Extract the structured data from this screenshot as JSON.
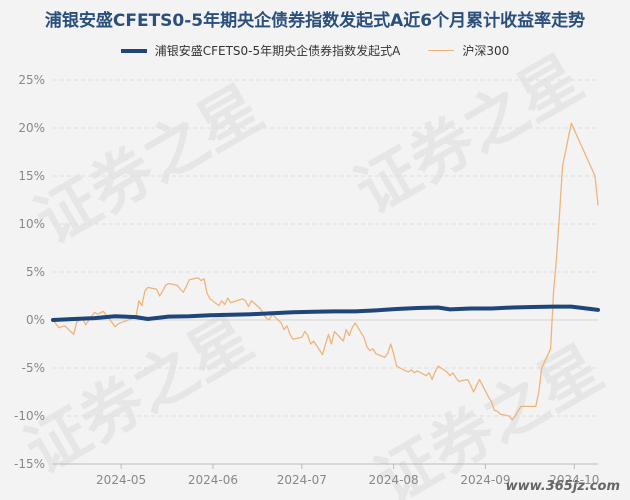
{
  "chart_data": {
    "type": "line",
    "title": "浦银安盛CFETS0-5年期央企债券指数发起式A近6个月累计收益率走势",
    "ylim": [
      -15,
      25
    ],
    "y_ticks": [
      "25%",
      "20%",
      "15%",
      "10%",
      "5%",
      "0%",
      "-5%",
      "-10%",
      "-15%"
    ],
    "y_tick_values": [
      25,
      20,
      15,
      10,
      5,
      0,
      -5,
      -10,
      -15
    ],
    "x_tick_labels": [
      "2024-05",
      "2024-06",
      "2024-07",
      "2024-08",
      "2024-09",
      "2024-10"
    ],
    "x_range": [
      "2024-04-08",
      "2024-10-09"
    ],
    "x_tick_dates": [
      "2024-05-01",
      "2024-06-01",
      "2024-07-01",
      "2024-08-01",
      "2024-09-01",
      "2024-10-01"
    ],
    "grid": true,
    "legend_position": "top",
    "series": [
      {
        "name": "浦银安盛CFETS0-5年期央企债券指数发起式A",
        "color": "#1f467a",
        "points": [
          [
            "2024-04-08",
            0.0
          ],
          [
            "2024-04-15",
            0.1
          ],
          [
            "2024-04-22",
            0.2
          ],
          [
            "2024-04-29",
            0.4
          ],
          [
            "2024-05-06",
            0.3
          ],
          [
            "2024-05-10",
            0.1
          ],
          [
            "2024-05-17",
            0.35
          ],
          [
            "2024-05-24",
            0.4
          ],
          [
            "2024-05-31",
            0.5
          ],
          [
            "2024-06-07",
            0.55
          ],
          [
            "2024-06-14",
            0.6
          ],
          [
            "2024-06-21",
            0.7
          ],
          [
            "2024-06-28",
            0.8
          ],
          [
            "2024-07-05",
            0.85
          ],
          [
            "2024-07-12",
            0.9
          ],
          [
            "2024-07-19",
            0.9
          ],
          [
            "2024-07-26",
            1.0
          ],
          [
            "2024-08-02",
            1.15
          ],
          [
            "2024-08-09",
            1.25
          ],
          [
            "2024-08-16",
            1.3
          ],
          [
            "2024-08-20",
            1.1
          ],
          [
            "2024-08-27",
            1.2
          ],
          [
            "2024-09-03",
            1.2
          ],
          [
            "2024-09-10",
            1.3
          ],
          [
            "2024-09-17",
            1.35
          ],
          [
            "2024-09-24",
            1.4
          ],
          [
            "2024-09-30",
            1.4
          ],
          [
            "2024-10-09",
            1.05
          ]
        ]
      },
      {
        "name": "沪深300",
        "color": "#f0b47a",
        "points": [
          [
            "2024-04-08",
            0.0
          ],
          [
            "2024-04-10",
            -0.8
          ],
          [
            "2024-04-12",
            -0.6
          ],
          [
            "2024-04-15",
            -1.5
          ],
          [
            "2024-04-16",
            -0.2
          ],
          [
            "2024-04-18",
            0.2
          ],
          [
            "2024-04-19",
            -0.5
          ],
          [
            "2024-04-22",
            0.8
          ],
          [
            "2024-04-23",
            0.6
          ],
          [
            "2024-04-25",
            0.9
          ],
          [
            "2024-04-26",
            0.5
          ],
          [
            "2024-04-29",
            -0.7
          ],
          [
            "2024-04-30",
            -0.4
          ],
          [
            "2024-05-06",
            0.3
          ],
          [
            "2024-05-07",
            2.0
          ],
          [
            "2024-05-08",
            1.5
          ],
          [
            "2024-05-09",
            3.0
          ],
          [
            "2024-05-10",
            3.4
          ],
          [
            "2024-05-13",
            3.2
          ],
          [
            "2024-05-14",
            2.5
          ],
          [
            "2024-05-15",
            3.0
          ],
          [
            "2024-05-16",
            3.6
          ],
          [
            "2024-05-17",
            3.8
          ],
          [
            "2024-05-20",
            3.6
          ],
          [
            "2024-05-21",
            3.2
          ],
          [
            "2024-05-22",
            2.9
          ],
          [
            "2024-05-23",
            3.5
          ],
          [
            "2024-05-24",
            4.2
          ],
          [
            "2024-05-27",
            4.4
          ],
          [
            "2024-05-28",
            4.1
          ],
          [
            "2024-05-29",
            4.3
          ],
          [
            "2024-05-30",
            2.8
          ],
          [
            "2024-05-31",
            2.2
          ],
          [
            "2024-06-03",
            1.5
          ],
          [
            "2024-06-04",
            2.0
          ],
          [
            "2024-06-05",
            1.6
          ],
          [
            "2024-06-06",
            2.3
          ],
          [
            "2024-06-07",
            1.8
          ],
          [
            "2024-06-11",
            2.2
          ],
          [
            "2024-06-12",
            2.0
          ],
          [
            "2024-06-13",
            1.4
          ],
          [
            "2024-06-14",
            2.0
          ],
          [
            "2024-06-17",
            1.2
          ],
          [
            "2024-06-18",
            0.6
          ],
          [
            "2024-06-19",
            0.2
          ],
          [
            "2024-06-20",
            0.0
          ],
          [
            "2024-06-21",
            0.6
          ],
          [
            "2024-06-24",
            -0.3
          ],
          [
            "2024-06-25",
            -1.0
          ],
          [
            "2024-06-26",
            -0.6
          ],
          [
            "2024-06-27",
            -1.5
          ],
          [
            "2024-06-28",
            -2.0
          ],
          [
            "2024-07-01",
            -1.8
          ],
          [
            "2024-07-02",
            -1.2
          ],
          [
            "2024-07-03",
            -1.6
          ],
          [
            "2024-07-04",
            -2.5
          ],
          [
            "2024-07-05",
            -2.2
          ],
          [
            "2024-07-08",
            -3.6
          ],
          [
            "2024-07-09",
            -2.5
          ],
          [
            "2024-07-10",
            -1.5
          ],
          [
            "2024-07-11",
            -2.5
          ],
          [
            "2024-07-12",
            -1.2
          ],
          [
            "2024-07-15",
            -2.2
          ],
          [
            "2024-07-16",
            -1.0
          ],
          [
            "2024-07-17",
            -1.6
          ],
          [
            "2024-07-18",
            -0.8
          ],
          [
            "2024-07-19",
            -0.3
          ],
          [
            "2024-07-22",
            -1.8
          ],
          [
            "2024-07-23",
            -2.8
          ],
          [
            "2024-07-24",
            -3.2
          ],
          [
            "2024-07-25",
            -3.0
          ],
          [
            "2024-07-26",
            -3.5
          ],
          [
            "2024-07-29",
            -3.9
          ],
          [
            "2024-07-30",
            -3.5
          ],
          [
            "2024-07-31",
            -2.5
          ],
          [
            "2024-08-01",
            -3.5
          ],
          [
            "2024-08-02",
            -4.8
          ],
          [
            "2024-08-05",
            -5.3
          ],
          [
            "2024-08-06",
            -5.4
          ],
          [
            "2024-08-07",
            -5.2
          ],
          [
            "2024-08-08",
            -5.5
          ],
          [
            "2024-08-09",
            -5.3
          ],
          [
            "2024-08-12",
            -5.8
          ],
          [
            "2024-08-13",
            -5.5
          ],
          [
            "2024-08-14",
            -6.2
          ],
          [
            "2024-08-15",
            -5.4
          ],
          [
            "2024-08-16",
            -4.8
          ],
          [
            "2024-08-19",
            -5.4
          ],
          [
            "2024-08-20",
            -5.8
          ],
          [
            "2024-08-21",
            -5.5
          ],
          [
            "2024-08-22",
            -6.0
          ],
          [
            "2024-08-23",
            -6.4
          ],
          [
            "2024-08-26",
            -6.2
          ],
          [
            "2024-08-27",
            -6.8
          ],
          [
            "2024-08-28",
            -7.5
          ],
          [
            "2024-08-29",
            -6.8
          ],
          [
            "2024-08-30",
            -6.2
          ],
          [
            "2024-09-02",
            -8.0
          ],
          [
            "2024-09-03",
            -8.5
          ],
          [
            "2024-09-04",
            -9.4
          ],
          [
            "2024-09-05",
            -9.5
          ],
          [
            "2024-09-06",
            -9.8
          ],
          [
            "2024-09-09",
            -10.0
          ],
          [
            "2024-09-10",
            -10.4
          ],
          [
            "2024-09-11",
            -10.0
          ],
          [
            "2024-09-12",
            -9.5
          ],
          [
            "2024-09-13",
            -9.0
          ],
          [
            "2024-09-18",
            -9.0
          ],
          [
            "2024-09-19",
            -7.5
          ],
          [
            "2024-09-20",
            -5.0
          ],
          [
            "2024-09-23",
            -3.0
          ],
          [
            "2024-09-24",
            3.0
          ],
          [
            "2024-09-25",
            6.5
          ],
          [
            "2024-09-26",
            11.0
          ],
          [
            "2024-09-27",
            16.0
          ],
          [
            "2024-09-30",
            20.5
          ],
          [
            "2024-10-08",
            15.0
          ],
          [
            "2024-10-09",
            12.0
          ]
        ]
      }
    ]
  },
  "watermark": "证券之星",
  "site_label": "www.365jz.com"
}
